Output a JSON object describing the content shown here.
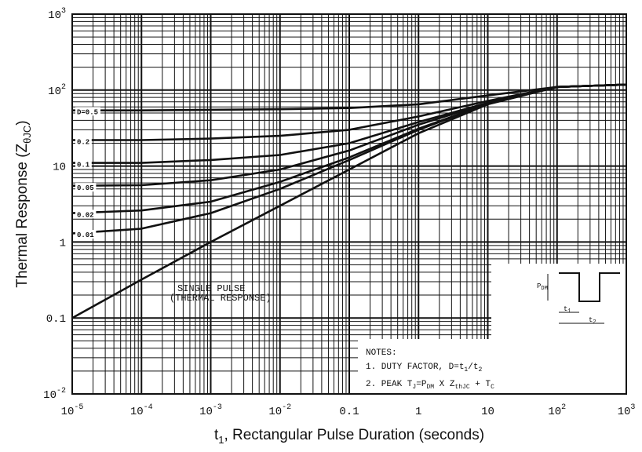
{
  "chart_data": {
    "type": "line",
    "title": "",
    "xlabel": "t₁, Rectangular Pulse Duration (seconds)",
    "xlabel_parts": {
      "main": "t",
      "sub": "1",
      "rest": ", Rectangular Pulse Duration (seconds)"
    },
    "ylabel": "Thermal Response (ZθJC)",
    "ylabel_parts": {
      "main": "Thermal Response (Z",
      "sub": "θJC",
      "rest": ")"
    },
    "x_scale": "log",
    "y_scale": "log",
    "xlim": [
      1e-05,
      1000
    ],
    "ylim": [
      0.01,
      1000
    ],
    "grid": true,
    "x_ticks": [
      {
        "value": 1e-05,
        "base": "10",
        "exp": "-5"
      },
      {
        "value": 0.0001,
        "base": "10",
        "exp": "-4"
      },
      {
        "value": 0.001,
        "base": "10",
        "exp": "-3"
      },
      {
        "value": 0.01,
        "base": "10",
        "exp": "-2"
      },
      {
        "value": 0.1,
        "base": "0.1",
        "exp": ""
      },
      {
        "value": 1,
        "base": "1",
        "exp": ""
      },
      {
        "value": 10,
        "base": "10",
        "exp": ""
      },
      {
        "value": 100,
        "base": "10",
        "exp": "2"
      },
      {
        "value": 1000,
        "base": "10",
        "exp": "3"
      }
    ],
    "y_ticks": [
      {
        "value": 0.01,
        "base": "10",
        "exp": "-2"
      },
      {
        "value": 0.1,
        "base": "0.1",
        "exp": ""
      },
      {
        "value": 1,
        "base": "1",
        "exp": ""
      },
      {
        "value": 10,
        "base": "10",
        "exp": ""
      },
      {
        "value": 100,
        "base": "10",
        "exp": "2"
      },
      {
        "value": 1000,
        "base": "10",
        "exp": "3"
      }
    ],
    "series": [
      {
        "name": "SINGLE PULSE (THERMAL RESPONSE)",
        "x": [
          1e-05,
          0.0001,
          0.001,
          0.01,
          0.1,
          1,
          10,
          100,
          1000
        ],
        "y": [
          0.1,
          0.32,
          1.0,
          3.0,
          9.0,
          27,
          65,
          110,
          118
        ]
      },
      {
        "name": "D=0.5",
        "x": [
          1e-05,
          0.0001,
          0.001,
          0.01,
          0.1,
          1,
          10,
          100,
          1000
        ],
        "y": [
          54,
          54,
          55,
          56,
          58,
          65,
          85,
          110,
          118
        ]
      },
      {
        "name": "0.2",
        "x": [
          1e-05,
          0.0001,
          0.001,
          0.01,
          0.1,
          1,
          10,
          100,
          1000
        ],
        "y": [
          22,
          22,
          23,
          25,
          30,
          45,
          72,
          110,
          118
        ]
      },
      {
        "name": "0.1",
        "x": [
          1e-05,
          0.0001,
          0.001,
          0.01,
          0.1,
          1,
          10,
          100,
          1000
        ],
        "y": [
          11,
          11,
          12,
          14,
          20,
          38,
          68,
          110,
          118
        ]
      },
      {
        "name": "0.05",
        "x": [
          1e-05,
          0.0001,
          0.001,
          0.01,
          0.1,
          1,
          10,
          100,
          1000
        ],
        "y": [
          5.5,
          5.6,
          6.5,
          9,
          16,
          35,
          67,
          110,
          118
        ]
      },
      {
        "name": "0.02",
        "x": [
          1e-05,
          0.0001,
          0.001,
          0.01,
          0.1,
          1,
          10,
          100,
          1000
        ],
        "y": [
          2.4,
          2.6,
          3.4,
          6.2,
          13,
          31,
          66,
          110,
          118
        ]
      },
      {
        "name": "0.01",
        "x": [
          1e-05,
          0.0001,
          0.001,
          0.01,
          0.1,
          1,
          10,
          100,
          1000
        ],
        "y": [
          1.3,
          1.5,
          2.4,
          5.0,
          12,
          30,
          66,
          110,
          118
        ]
      }
    ],
    "curve_labels": [
      {
        "text": "D=0.5",
        "y": 52
      },
      {
        "text": "0.2",
        "y": 21
      },
      {
        "text": "0.1",
        "y": 10.5
      },
      {
        "text": "0.05",
        "y": 5.2
      },
      {
        "text": "0.02",
        "y": 2.3
      },
      {
        "text": "0.01",
        "y": 1.25
      }
    ],
    "annotation": {
      "line1": "SINGLE PULSE",
      "line2": "(THERMAL RESPONSE)"
    },
    "notes": {
      "header": "NOTES:",
      "n1_prefix": "1. DUTY FACTOR, D=t",
      "n1_s1": "1",
      "n1_mid": "/t",
      "n1_s2": "2",
      "n2_prefix": "2. PEAK T",
      "n2_s1": "J",
      "n2_mid1": "=P",
      "n2_s2": "DM",
      "n2_mid2": " X Z",
      "n2_s3": "thJC",
      "n2_mid3": " + T",
      "n2_s4": "C"
    },
    "waveform_labels": {
      "p": "P",
      "p_sub": "DM",
      "t1": "t",
      "t1_sub": "1",
      "t2": "t",
      "t2_sub": "2"
    }
  }
}
